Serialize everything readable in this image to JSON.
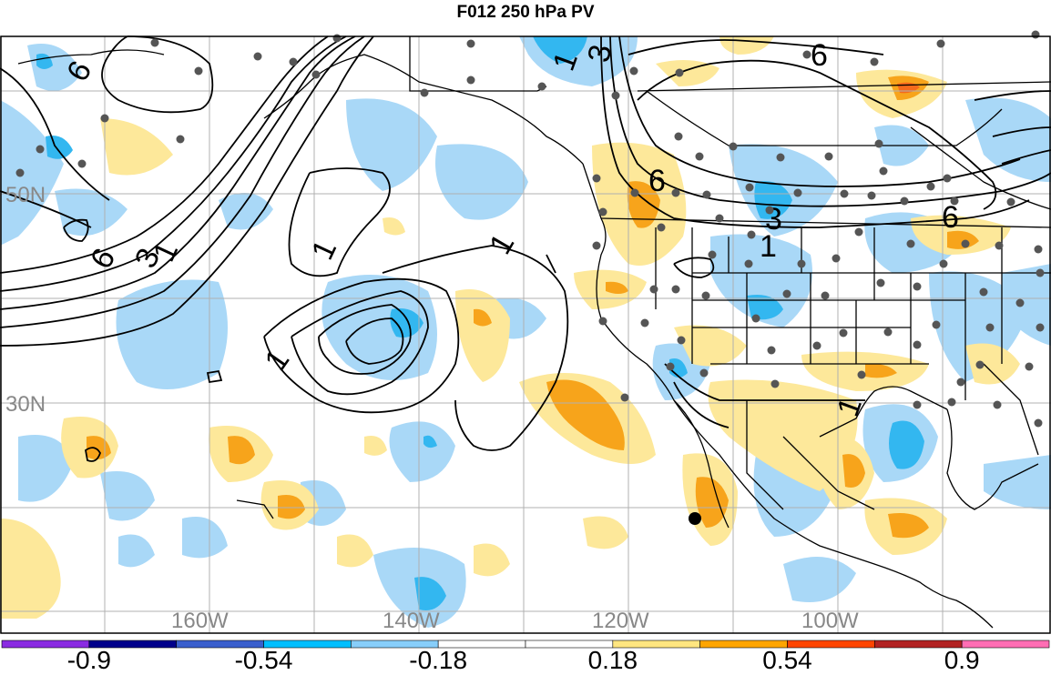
{
  "title": "F012 250 hPa PV",
  "lat_labels": [
    {
      "id": "lat-50n",
      "text": "50N"
    },
    {
      "id": "lat-30n",
      "text": "30N"
    }
  ],
  "lon_labels": [
    {
      "id": "lon-160w",
      "text": "160W"
    },
    {
      "id": "lon-140w",
      "text": "140W"
    },
    {
      "id": "lon-120w",
      "text": "120W"
    },
    {
      "id": "lon-100w",
      "text": "100W"
    }
  ],
  "contour_labels": [
    "6",
    "3",
    "1"
  ],
  "colorbar": {
    "colors": [
      "#8a2be2",
      "#00008b",
      "#3a5fcd",
      "#00bfff",
      "#87cefa",
      "#ffffff",
      "#ffffff",
      "#ffe680",
      "#ffa500",
      "#ff4500",
      "#b22222",
      "#ff6eb4"
    ],
    "tick_labels": [
      "-0.9",
      "-0.54",
      "-0.18",
      "0.18",
      "0.54",
      "0.9"
    ]
  },
  "colors": {
    "neg_light": "#a9d8f7",
    "neg_mid": "#33b7f0",
    "pos_light": "#fde89a",
    "pos_mid": "#f7a41b",
    "pos_dark": "#f46a1c",
    "contour": "#000000",
    "grid": "#b0b0b0",
    "stations": "#555555"
  }
}
